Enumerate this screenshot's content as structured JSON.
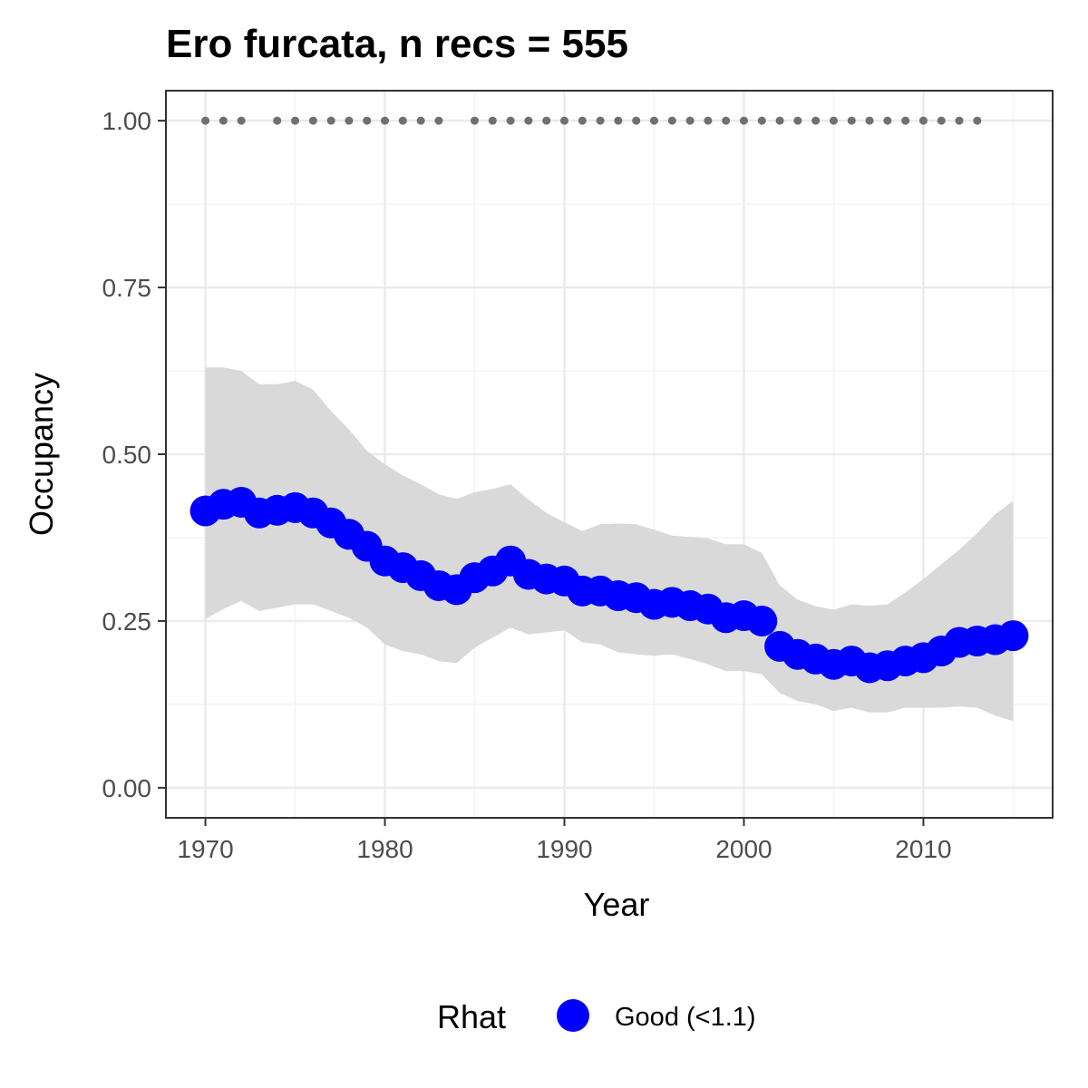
{
  "colors": {
    "point": "#0000ff",
    "ribbon": "#d9d9d9",
    "record_dot": "#707070",
    "grid_major": "#ebebeb",
    "grid_minor": "#f3f3f3",
    "panel_border": "#333333",
    "tick_text": "#4d4d4d"
  },
  "chart_data": {
    "type": "line",
    "title": "Ero furcata, n recs = 555",
    "xlabel": "Year",
    "ylabel": "Occupancy",
    "xlim": [
      1967.8,
      2017.2
    ],
    "ylim": [
      -0.045,
      1.045
    ],
    "x_ticks": [
      1970,
      1980,
      1990,
      2000,
      2010
    ],
    "x_tick_labels": [
      "1970",
      "1980",
      "1990",
      "2000",
      "2010"
    ],
    "y_ticks": [
      0,
      0.25,
      0.5,
      0.75,
      1.0
    ],
    "y_tick_labels": [
      "0.00",
      "0.25",
      "0.50",
      "0.75",
      "1.00"
    ],
    "grid": true,
    "legend_position": "bottom",
    "legend": {
      "title": "Rhat",
      "entries": [
        "Good (<1.1)"
      ]
    },
    "series": [
      {
        "name": "Good (<1.1)",
        "x": [
          1970,
          1971,
          1972,
          1973,
          1974,
          1975,
          1976,
          1977,
          1978,
          1979,
          1980,
          1981,
          1982,
          1983,
          1984,
          1985,
          1986,
          1987,
          1988,
          1989,
          1990,
          1991,
          1992,
          1993,
          1994,
          1995,
          1996,
          1997,
          1998,
          1999,
          2000,
          2001,
          2002,
          2003,
          2004,
          2005,
          2006,
          2007,
          2008,
          2009,
          2010,
          2011,
          2012,
          2013,
          2014,
          2015
        ],
        "y": [
          0.415,
          0.425,
          0.428,
          0.412,
          0.416,
          0.42,
          0.412,
          0.397,
          0.38,
          0.362,
          0.34,
          0.33,
          0.318,
          0.303,
          0.297,
          0.315,
          0.325,
          0.34,
          0.32,
          0.313,
          0.31,
          0.295,
          0.295,
          0.288,
          0.285,
          0.275,
          0.278,
          0.273,
          0.268,
          0.255,
          0.258,
          0.25,
          0.212,
          0.2,
          0.193,
          0.185,
          0.19,
          0.18,
          0.183,
          0.19,
          0.195,
          0.205,
          0.218,
          0.22,
          0.222,
          0.228
        ],
        "lower": [
          0.253,
          0.268,
          0.28,
          0.265,
          0.27,
          0.275,
          0.275,
          0.265,
          0.255,
          0.24,
          0.215,
          0.205,
          0.2,
          0.19,
          0.187,
          0.21,
          0.225,
          0.24,
          0.23,
          0.233,
          0.236,
          0.218,
          0.215,
          0.203,
          0.2,
          0.198,
          0.2,
          0.193,
          0.185,
          0.175,
          0.175,
          0.17,
          0.142,
          0.13,
          0.125,
          0.115,
          0.12,
          0.113,
          0.113,
          0.12,
          0.12,
          0.12,
          0.122,
          0.12,
          0.108,
          0.1
        ],
        "upper": [
          0.63,
          0.63,
          0.625,
          0.605,
          0.605,
          0.61,
          0.597,
          0.565,
          0.537,
          0.505,
          0.485,
          0.468,
          0.455,
          0.44,
          0.433,
          0.443,
          0.448,
          0.455,
          0.432,
          0.412,
          0.398,
          0.385,
          0.395,
          0.396,
          0.395,
          0.387,
          0.378,
          0.376,
          0.374,
          0.365,
          0.365,
          0.352,
          0.303,
          0.282,
          0.272,
          0.267,
          0.275,
          0.273,
          0.275,
          0.293,
          0.313,
          0.335,
          0.357,
          0.382,
          0.41,
          0.43
        ]
      },
      {
        "name": "",
        "x": [
          1970,
          1971,
          1972,
          1974,
          1975,
          1976,
          1977,
          1978,
          1979,
          1980,
          1981,
          1982,
          1983,
          1985,
          1986,
          1987,
          1988,
          1989,
          1990,
          1991,
          1992,
          1993,
          1994,
          1995,
          1996,
          1997,
          1998,
          1999,
          2000,
          2001,
          2002,
          2003,
          2004,
          2005,
          2006,
          2007,
          2008,
          2009,
          2010,
          2011,
          2012,
          2013
        ],
        "y": [
          1,
          1,
          1,
          1,
          1,
          1,
          1,
          1,
          1,
          1,
          1,
          1,
          1,
          1,
          1,
          1,
          1,
          1,
          1,
          1,
          1,
          1,
          1,
          1,
          1,
          1,
          1,
          1,
          1,
          1,
          1,
          1,
          1,
          1,
          1,
          1,
          1,
          1,
          1,
          1,
          1,
          1
        ]
      }
    ]
  }
}
